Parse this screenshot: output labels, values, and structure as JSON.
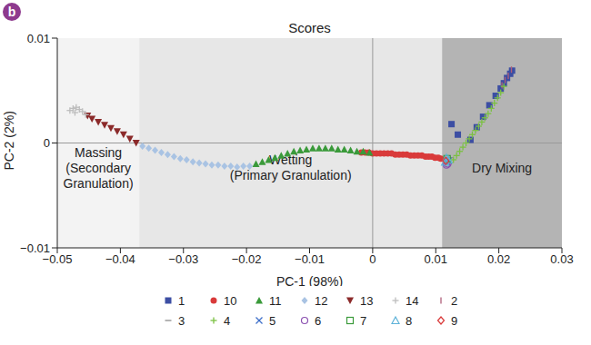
{
  "chart_data": {
    "type": "scatter",
    "panel_label": "b",
    "title": "Scores",
    "x_label": "PC-1 (98%)",
    "y_label": "PC-2 (2%)",
    "xlim": [
      -0.05,
      0.03
    ],
    "xticks": [
      {
        "value": -0.05,
        "label": "−0.05"
      },
      {
        "value": -0.04,
        "label": "−0.04"
      },
      {
        "value": -0.03,
        "label": "−0.03"
      },
      {
        "value": -0.02,
        "label": "−0.02"
      },
      {
        "value": -0.01,
        "label": "−0.01"
      },
      0,
      0.01,
      0.02,
      0.03
    ],
    "ylim": [
      -0.01,
      0.01
    ],
    "yticks": [
      {
        "value": -0.01,
        "label": "−0.01"
      },
      0,
      0.01
    ],
    "grid": false,
    "legend": "bottom",
    "ref_lines": {
      "x": [
        0
      ],
      "y": [
        0
      ]
    },
    "regions": [
      {
        "label": [
          "Massing",
          "(Secondary",
          "Granulation)"
        ],
        "x": [
          -0.05,
          -0.037
        ],
        "color": "#f3f3f3"
      },
      {
        "label": [
          "Wetting",
          "(Primary Granulation)"
        ],
        "x": [
          -0.037,
          0.011
        ],
        "color": "#e7e7e7"
      },
      {
        "label": [
          "Dry Mixing"
        ],
        "x": [
          0.011,
          0.03
        ],
        "color": "#b4b4b4"
      }
    ],
    "series": [
      {
        "name": "1",
        "color": "#3c4ea3",
        "marker": "square",
        "x": [
          0.0125,
          0.0135,
          0.0155,
          0.0165,
          0.0175,
          0.0185,
          0.0195,
          0.0203,
          0.0208,
          0.0213,
          0.0218,
          0.0221
        ],
        "y": [
          0.0018,
          0.0008,
          0.0003,
          0.0015,
          0.0025,
          0.0036,
          0.0045,
          0.0052,
          0.0057,
          0.0062,
          0.0066,
          0.0069
        ]
      },
      {
        "name": "10",
        "color": "#d93a3a",
        "marker": "circle",
        "x": [
          0.0108,
          0.0104,
          0.0099,
          0.0094,
          0.0089,
          0.0084,
          0.0078,
          0.0072,
          0.0066,
          0.006,
          0.0054,
          0.0048,
          0.0042,
          0.0036,
          0.003,
          0.0024,
          0.0018,
          0.0012,
          0.0006,
          0.0,
          -0.0006,
          -0.0012,
          -0.0018
        ],
        "y": [
          -0.0015,
          -0.0014,
          -0.0014,
          -0.0013,
          -0.0013,
          -0.0013,
          -0.0012,
          -0.0012,
          -0.0012,
          -0.0012,
          -0.0011,
          -0.0011,
          -0.0011,
          -0.0011,
          -0.001,
          -0.001,
          -0.001,
          -0.001,
          -0.001,
          -0.001,
          -0.0009,
          -0.0009,
          -0.0009
        ]
      },
      {
        "name": "11",
        "color": "#3a9a3a",
        "marker": "triangle",
        "x": [
          -0.0005,
          -0.0015,
          -0.0025,
          -0.0035,
          -0.0045,
          -0.0055,
          -0.0065,
          -0.0075,
          -0.0085,
          -0.0095,
          -0.0105,
          -0.0115,
          -0.0125,
          -0.0135,
          -0.0145,
          -0.0155,
          -0.0165,
          -0.0175,
          -0.0185
        ],
        "y": [
          -0.0009,
          -0.0008,
          -0.0008,
          -0.0007,
          -0.0006,
          -0.0006,
          -0.0005,
          -0.0005,
          -0.0005,
          -0.0005,
          -0.0006,
          -0.0007,
          -0.0008,
          -0.001,
          -0.0012,
          -0.0014,
          -0.0016,
          -0.0018,
          -0.002
        ]
      },
      {
        "name": "12",
        "color": "#a9c3e3",
        "marker": "diamond",
        "x": [
          -0.0195,
          -0.0205,
          -0.0215,
          -0.0225,
          -0.0235,
          -0.0245,
          -0.0255,
          -0.0265,
          -0.0275,
          -0.0285,
          -0.0295,
          -0.0305,
          -0.0315,
          -0.0325,
          -0.0335,
          -0.0345,
          -0.0355,
          -0.0365
        ],
        "y": [
          -0.0022,
          -0.0022,
          -0.0023,
          -0.0022,
          -0.0022,
          -0.0021,
          -0.0021,
          -0.002,
          -0.0019,
          -0.0018,
          -0.0016,
          -0.0015,
          -0.0013,
          -0.0011,
          -0.0009,
          -0.0007,
          -0.0005,
          -0.0003
        ]
      },
      {
        "name": "13",
        "color": "#8b2a2a",
        "marker": "triangle-down",
        "x": [
          -0.0375,
          -0.0385,
          -0.0395,
          -0.0405,
          -0.0415,
          -0.0425,
          -0.0435,
          -0.0445,
          -0.0452
        ],
        "y": [
          0.0,
          0.0004,
          0.0008,
          0.0011,
          0.0014,
          0.0017,
          0.002,
          0.0023,
          0.0026
        ]
      },
      {
        "name": "14",
        "color": "#bdbdbd",
        "marker": "plus",
        "x": [
          -0.0455,
          -0.046,
          -0.0465,
          -0.047,
          -0.0475,
          -0.048,
          -0.0472
        ],
        "y": [
          0.0027,
          0.003,
          0.0032,
          0.0034,
          0.0033,
          0.0031,
          0.0029
        ]
      },
      {
        "name": "2",
        "color": "#b0607a",
        "marker": "vline",
        "x": [
          0.0205,
          0.021,
          0.0215,
          0.022
        ],
        "y": [
          0.0055,
          0.006,
          0.0064,
          0.007
        ]
      },
      {
        "name": "3",
        "color": "#8c8c8c",
        "marker": "hline",
        "x": [
          0.0118,
          0.0122
        ],
        "y": [
          -0.0016,
          -0.0014
        ]
      },
      {
        "name": "4",
        "color": "#7bc142",
        "marker": "plus",
        "x": [
          0.0122,
          0.0128,
          0.0133,
          0.0138,
          0.0143,
          0.0148,
          0.0153,
          0.0158,
          0.0163,
          0.0168,
          0.0173,
          0.0178,
          0.0183,
          0.0188,
          0.0193,
          0.0198,
          0.0203,
          0.0208
        ],
        "y": [
          -0.0019,
          -0.0016,
          -0.0012,
          -0.0008,
          -0.0004,
          0.0,
          0.0004,
          0.0008,
          0.0012,
          0.0016,
          0.002,
          0.0024,
          0.0028,
          0.0033,
          0.0038,
          0.0043,
          0.0048,
          0.0054
        ]
      },
      {
        "name": "5",
        "color": "#3c6ec8",
        "marker": "x",
        "x": [
          0.0118,
          0.012
        ],
        "y": [
          -0.0019,
          -0.0017
        ]
      },
      {
        "name": "6",
        "color": "#8a4fb0",
        "marker": "circle-open",
        "x": [
          0.0117,
          0.0119
        ],
        "y": [
          -0.0021,
          -0.002
        ]
      },
      {
        "name": "7",
        "color": "#3a9a3a",
        "marker": "square-open",
        "x": [
          0.0118
        ],
        "y": [
          -0.0015
        ]
      },
      {
        "name": "8",
        "color": "#5fb3d9",
        "marker": "triangle-open",
        "x": [
          0.0115,
          0.012,
          0.0117
        ],
        "y": [
          -0.0018,
          -0.0016,
          -0.0014
        ]
      },
      {
        "name": "9",
        "color": "#d93a3a",
        "marker": "diamond-open",
        "x": [
          0.0116
        ],
        "y": [
          -0.0017
        ]
      }
    ]
  }
}
